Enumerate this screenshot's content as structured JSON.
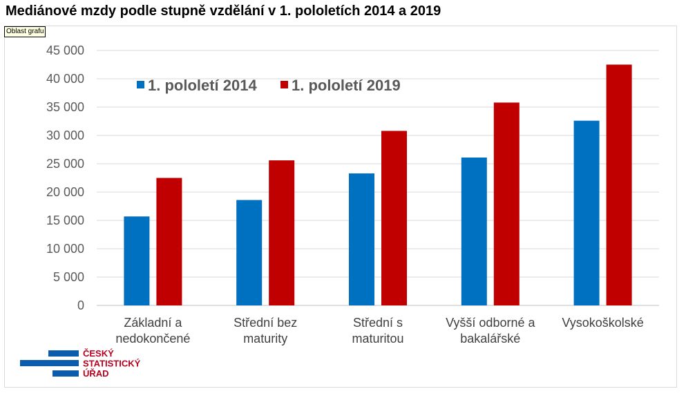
{
  "header": {
    "title": "Mediánové mzdy podle stupně vzdělání v 1. pololetích 2014 a 2019"
  },
  "tooltip": {
    "text": "Oblast grafu"
  },
  "logo": {
    "lines": [
      "ČESKÝ",
      "STATISTICKÝ",
      "ÚŘAD"
    ],
    "bar_color": "#0b5cad",
    "text_color": "#b8001f"
  },
  "chart_data": {
    "type": "bar",
    "title": "Mediánové mzdy podle stupně vzdělání v 1. pololetích 2014 a 2019",
    "xlabel": "",
    "ylabel": "",
    "categories": [
      [
        "Základní a",
        "nedokončené"
      ],
      [
        "Střední bez",
        "maturity"
      ],
      [
        "Střední s",
        "maturitou"
      ],
      [
        "Vyšší odborné a",
        "bakalářské"
      ],
      [
        "Vysokoškolské"
      ]
    ],
    "series": [
      {
        "name": "1. pololetí 2014",
        "color": "#0070c0",
        "values": [
          15700,
          18600,
          23300,
          26100,
          32600
        ]
      },
      {
        "name": "1. pololetí 2019",
        "color": "#c00000",
        "values": [
          22500,
          25600,
          30800,
          35800,
          42500
        ]
      }
    ],
    "ylim": [
      0,
      45000
    ],
    "yticks": [
      0,
      5000,
      10000,
      15000,
      20000,
      25000,
      30000,
      35000,
      40000,
      45000
    ],
    "ytick_labels": [
      "0",
      "5 000",
      "10 000",
      "15 000",
      "20 000",
      "25 000",
      "30 000",
      "35 000",
      "40 000",
      "45 000"
    ],
    "grid": true,
    "legend_position": "top-left"
  }
}
